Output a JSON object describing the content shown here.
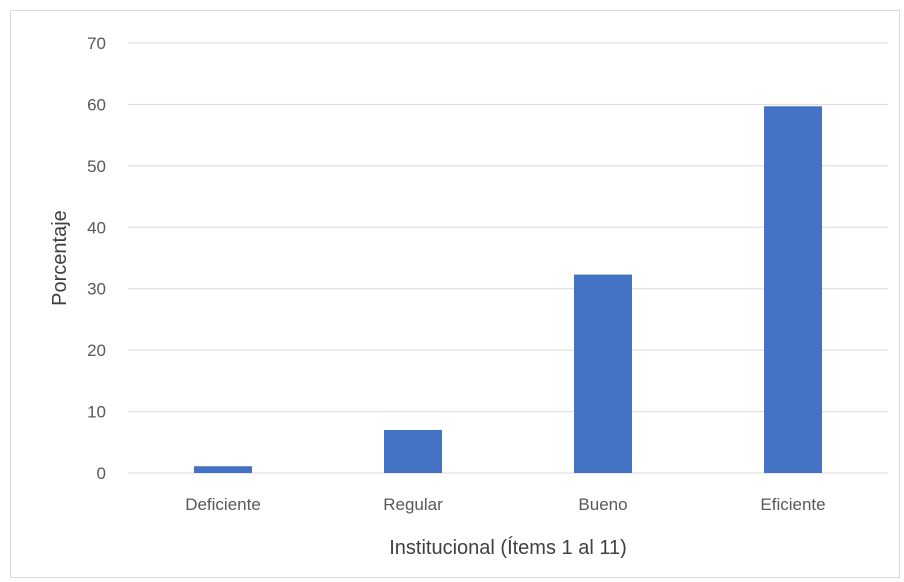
{
  "chart_data": {
    "type": "bar",
    "categories": [
      "Deficiente",
      "Regular",
      "Bueno",
      "Eficiente"
    ],
    "values": [
      1.1,
      7.0,
      32.3,
      59.7
    ],
    "xlabel": "Institucional (Ítems 1 al 11)",
    "ylabel": "Porcentaje",
    "ylim": [
      0,
      70
    ],
    "yticks": [
      0,
      10,
      20,
      30,
      40,
      50,
      60,
      70
    ],
    "grid": true,
    "legend": "none",
    "bar_color": "#4472C4",
    "grid_color": "#d9d9d9"
  }
}
